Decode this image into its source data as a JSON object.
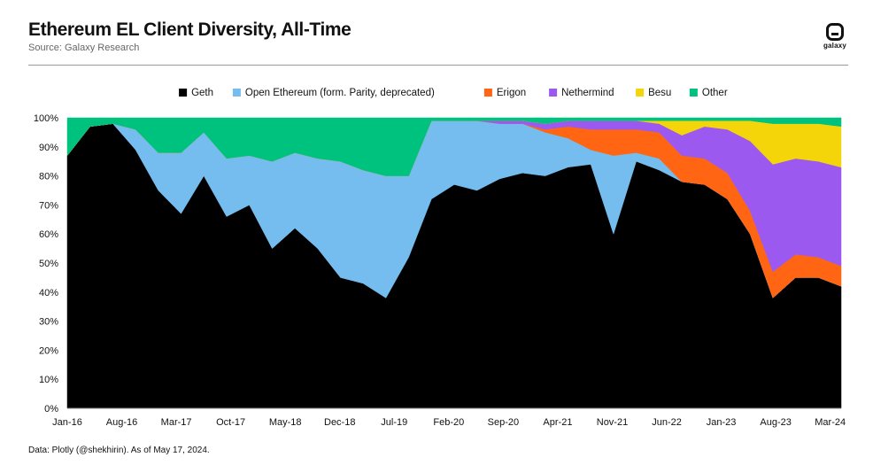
{
  "header": {
    "title": "Ethereum EL Client Diversity, All-Time",
    "subtitle": "Source: Galaxy Research",
    "logo_text": "galaxy"
  },
  "footer": {
    "note": "Data: Plotly (@shekhirin). As of May 17, 2024."
  },
  "chart_data": {
    "type": "area",
    "stacking": "percent",
    "title": "Ethereum EL Client Diversity, All-Time",
    "xlabel": "",
    "ylabel": "",
    "ylim": [
      0,
      100
    ],
    "grid": false,
    "legend_position": "top",
    "x_ticks": [
      "Jan-16",
      "Aug-16",
      "Mar-17",
      "Oct-17",
      "May-18",
      "Dec-18",
      "Jul-19",
      "Feb-20",
      "Sep-20",
      "Apr-21",
      "Nov-21",
      "Jun-22",
      "Jan-23",
      "Aug-23",
      "Mar-24"
    ],
    "y_ticks": [
      "0%",
      "10%",
      "20%",
      "30%",
      "40%",
      "50%",
      "60%",
      "70%",
      "80%",
      "90%",
      "100%"
    ],
    "x_start": "Jan-16",
    "x_end": "May-24",
    "x": [
      "Jan-16",
      "Apr-16",
      "Jul-16",
      "Oct-16",
      "Jan-17",
      "Apr-17",
      "Jul-17",
      "Oct-17",
      "Jan-18",
      "Apr-18",
      "Jul-18",
      "Oct-18",
      "Jan-19",
      "Apr-19",
      "Jul-19",
      "Oct-19",
      "Jan-20",
      "Apr-20",
      "Jul-20",
      "Oct-20",
      "Jan-21",
      "Apr-21",
      "Jul-21",
      "Oct-21",
      "Jan-22",
      "Apr-22",
      "Jul-22",
      "Oct-22",
      "Jan-23",
      "Apr-23",
      "Jul-23",
      "Oct-23",
      "Jan-24",
      "Apr-24",
      "May-24"
    ],
    "series": [
      {
        "name": "Geth",
        "color": "#000000",
        "values": [
          87,
          97,
          98,
          89,
          75,
          67,
          80,
          66,
          70,
          55,
          62,
          55,
          45,
          43,
          38,
          52,
          72,
          77,
          75,
          79,
          81,
          80,
          83,
          84,
          60,
          85,
          82,
          78,
          77,
          72,
          60,
          38,
          45,
          45,
          42
        ]
      },
      {
        "name": "Open Ethereum (form. Parity, deprecated)",
        "color": "#74BDEE",
        "values": [
          0,
          0,
          0,
          7,
          13,
          21,
          15,
          20,
          17,
          30,
          26,
          31,
          40,
          39,
          42,
          28,
          27,
          22,
          24,
          19,
          17,
          15,
          10,
          5,
          27,
          3,
          4,
          0,
          0,
          0,
          0,
          0,
          0,
          0,
          0
        ]
      },
      {
        "name": "Erigon",
        "color": "#FF6512",
        "values": [
          0,
          0,
          0,
          0,
          0,
          0,
          0,
          0,
          0,
          0,
          0,
          0,
          0,
          0,
          0,
          0,
          0,
          0,
          0,
          0,
          0,
          1,
          4,
          7,
          9,
          8,
          9,
          9,
          9,
          9,
          8,
          9,
          8,
          7,
          7
        ]
      },
      {
        "name": "Nethermind",
        "color": "#9B59F0",
        "values": [
          0,
          0,
          0,
          0,
          0,
          0,
          0,
          0,
          0,
          0,
          0,
          0,
          0,
          0,
          0,
          0,
          0,
          0,
          0,
          1,
          1,
          2,
          2,
          3,
          3,
          3,
          3,
          7,
          11,
          15,
          24,
          37,
          33,
          33,
          34
        ]
      },
      {
        "name": "Besu",
        "color": "#F3D509",
        "values": [
          0,
          0,
          0,
          0,
          0,
          0,
          0,
          0,
          0,
          0,
          0,
          0,
          0,
          0,
          0,
          0,
          0,
          0,
          0,
          0,
          0,
          0,
          0,
          0,
          0,
          0,
          1,
          5,
          2,
          3,
          7,
          14,
          12,
          13,
          14
        ]
      },
      {
        "name": "Other",
        "color": "#00C27F",
        "values": [
          13,
          3,
          2,
          4,
          12,
          12,
          5,
          14,
          13,
          15,
          12,
          14,
          15,
          18,
          20,
          20,
          1,
          1,
          1,
          1,
          1,
          2,
          1,
          1,
          1,
          1,
          1,
          1,
          1,
          1,
          1,
          2,
          2,
          2,
          3
        ]
      }
    ]
  }
}
